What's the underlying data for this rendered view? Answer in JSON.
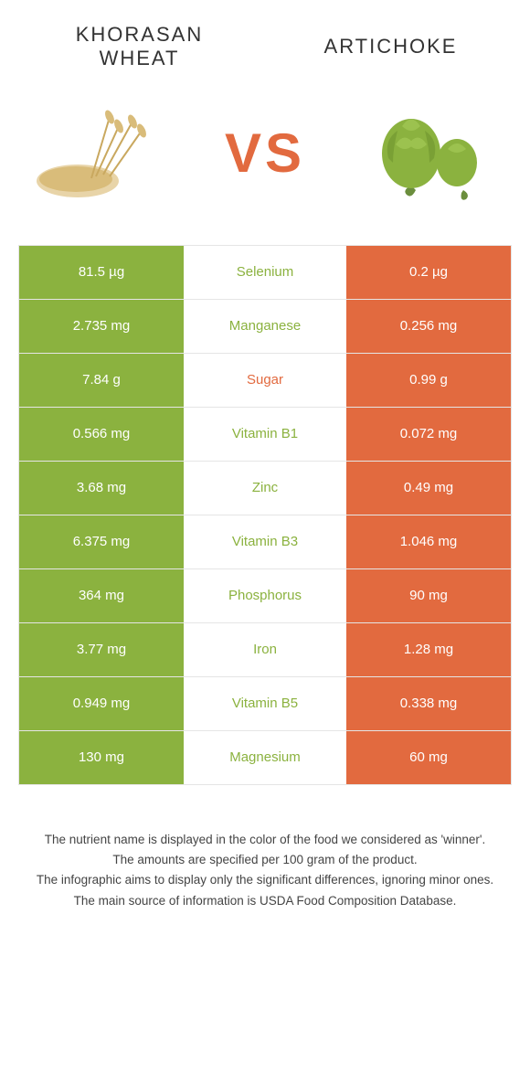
{
  "header": {
    "left_title": "KHORASAN WHEAT",
    "right_title": "ARTICHOKE",
    "vs_label": "VS"
  },
  "colors": {
    "left_food": "#8bb23f",
    "right_food": "#e26a3f",
    "sugar_label": "#e26a3f",
    "background": "#ffffff",
    "text_dark": "#333333",
    "border": "#e5e5e5"
  },
  "images": {
    "left_alt": "wheat",
    "right_alt": "artichoke"
  },
  "rows": [
    {
      "left": "81.5 µg",
      "nutrient": "Selenium",
      "right": "0.2 µg",
      "winner": "left"
    },
    {
      "left": "2.735 mg",
      "nutrient": "Manganese",
      "right": "0.256 mg",
      "winner": "left"
    },
    {
      "left": "7.84 g",
      "nutrient": "Sugar",
      "right": "0.99 g",
      "winner": "right"
    },
    {
      "left": "0.566 mg",
      "nutrient": "Vitamin B1",
      "right": "0.072 mg",
      "winner": "left"
    },
    {
      "left": "3.68 mg",
      "nutrient": "Zinc",
      "right": "0.49 mg",
      "winner": "left"
    },
    {
      "left": "6.375 mg",
      "nutrient": "Vitamin B3",
      "right": "1.046 mg",
      "winner": "left"
    },
    {
      "left": "364 mg",
      "nutrient": "Phosphorus",
      "right": "90 mg",
      "winner": "left"
    },
    {
      "left": "3.77 mg",
      "nutrient": "Iron",
      "right": "1.28 mg",
      "winner": "left"
    },
    {
      "left": "0.949 mg",
      "nutrient": "Vitamin B5",
      "right": "0.338 mg",
      "winner": "left"
    },
    {
      "left": "130 mg",
      "nutrient": "Magnesium",
      "right": "60 mg",
      "winner": "left"
    }
  ],
  "footer": {
    "line1": "The nutrient name is displayed in the color of the food we considered as 'winner'.",
    "line2": "The amounts are specified per 100 gram of the product.",
    "line3": "The infographic aims to display only the significant differences, ignoring minor ones.",
    "line4": "The main source of information is USDA Food Composition Database."
  }
}
